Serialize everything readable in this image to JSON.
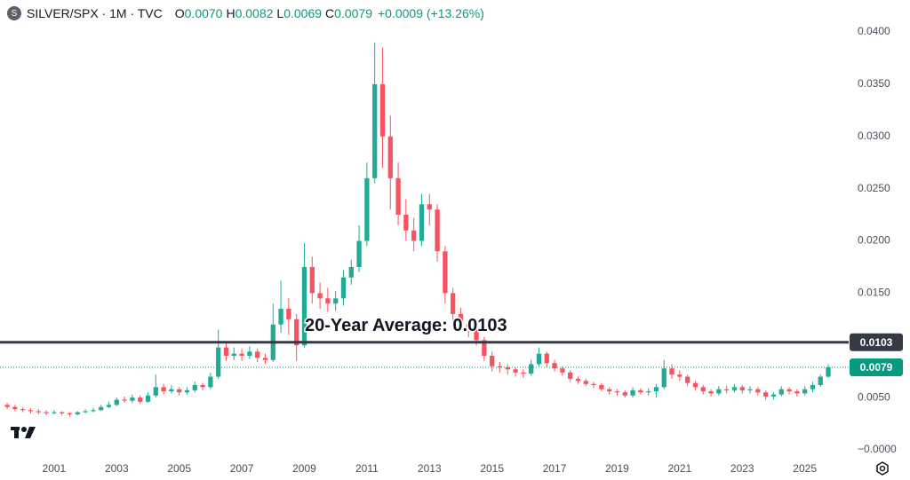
{
  "header": {
    "icon": "S",
    "symbol": "SILVER/SPX · 1M · TVC",
    "ohlc": [
      {
        "label": "O",
        "value": "0.0070"
      },
      {
        "label": "H",
        "value": "0.0082"
      },
      {
        "label": "L",
        "value": "0.0069"
      },
      {
        "label": "C",
        "value": "0.0079"
      }
    ],
    "change": "+0.0009 (+13.26%)"
  },
  "chart_data": {
    "type": "candlestick",
    "up_color": "#22ab94",
    "down_color": "#f7525f",
    "x": [
      1999.5,
      1999.75,
      2000,
      2000.25,
      2000.5,
      2000.75,
      2001,
      2001.25,
      2001.5,
      2001.75,
      2002,
      2002.25,
      2002.5,
      2002.75,
      2003,
      2003.25,
      2003.5,
      2003.75,
      2004,
      2004.25,
      2004.5,
      2004.75,
      2005,
      2005.25,
      2005.5,
      2005.75,
      2006,
      2006.25,
      2006.5,
      2006.75,
      2007,
      2007.25,
      2007.5,
      2007.75,
      2008,
      2008.25,
      2008.5,
      2008.75,
      2009,
      2009.25,
      2009.5,
      2009.75,
      2010,
      2010.25,
      2010.5,
      2010.75,
      2011,
      2011.25,
      2011.5,
      2011.75,
      2012,
      2012.25,
      2012.5,
      2012.75,
      2013,
      2013.25,
      2013.5,
      2013.75,
      2014,
      2014.25,
      2014.5,
      2014.75,
      2015,
      2015.25,
      2015.5,
      2015.75,
      2016,
      2016.25,
      2016.5,
      2016.75,
      2017,
      2017.25,
      2017.5,
      2017.75,
      2018,
      2018.25,
      2018.5,
      2018.75,
      2019,
      2019.25,
      2019.5,
      2019.75,
      2020,
      2020.25,
      2020.5,
      2020.75,
      2021,
      2021.25,
      2021.5,
      2021.75,
      2022,
      2022.25,
      2022.5,
      2022.75,
      2023,
      2023.25,
      2023.5,
      2023.75,
      2024,
      2024.25,
      2024.5,
      2024.75,
      2025,
      2025.25,
      2025.5,
      2025.75
    ],
    "open": [
      0.0043,
      0.0041,
      0.0039,
      0.0038,
      0.0037,
      0.0036,
      0.0035,
      0.0036,
      0.0035,
      0.0034,
      0.0036,
      0.0037,
      0.0038,
      0.0041,
      0.0043,
      0.0048,
      0.0047,
      0.005,
      0.0046,
      0.0052,
      0.006,
      0.0056,
      0.0058,
      0.0055,
      0.0057,
      0.0062,
      0.006,
      0.007,
      0.0098,
      0.009,
      0.0092,
      0.009,
      0.0094,
      0.0088,
      0.0086,
      0.012,
      0.0135,
      0.0125,
      0.01,
      0.0175,
      0.015,
      0.0145,
      0.014,
      0.0145,
      0.0165,
      0.0175,
      0.02,
      0.026,
      0.035,
      0.03,
      0.026,
      0.0225,
      0.021,
      0.02,
      0.0235,
      0.023,
      0.019,
      0.015,
      0.013,
      0.012,
      0.0115,
      0.0105,
      0.009,
      0.008,
      0.0079,
      0.0077,
      0.0074,
      0.0073,
      0.0082,
      0.0092,
      0.0083,
      0.0078,
      0.0074,
      0.0068,
      0.0066,
      0.0063,
      0.0062,
      0.0058,
      0.0056,
      0.0055,
      0.0052,
      0.0057,
      0.0055,
      0.0056,
      0.006,
      0.0078,
      0.0072,
      0.007,
      0.0064,
      0.006,
      0.0056,
      0.0054,
      0.0058,
      0.0057,
      0.006,
      0.0057,
      0.0058,
      0.0055,
      0.0051,
      0.0053,
      0.0058,
      0.0056,
      0.0054,
      0.0058,
      0.0062,
      0.007
    ],
    "high": [
      0.0045,
      0.0043,
      0.0041,
      0.004,
      0.0039,
      0.0038,
      0.0038,
      0.0037,
      0.0036,
      0.0037,
      0.0039,
      0.004,
      0.0043,
      0.0046,
      0.005,
      0.0051,
      0.0053,
      0.0052,
      0.0055,
      0.0072,
      0.0063,
      0.0062,
      0.006,
      0.006,
      0.0065,
      0.0064,
      0.0074,
      0.0115,
      0.0102,
      0.0098,
      0.0097,
      0.0099,
      0.0097,
      0.0092,
      0.014,
      0.0162,
      0.0145,
      0.013,
      0.0198,
      0.0185,
      0.016,
      0.0155,
      0.0152,
      0.0172,
      0.0182,
      0.0215,
      0.0275,
      0.039,
      0.0385,
      0.032,
      0.0275,
      0.024,
      0.0222,
      0.0245,
      0.0245,
      0.0235,
      0.0195,
      0.0155,
      0.0136,
      0.0125,
      0.012,
      0.0108,
      0.0094,
      0.0084,
      0.0082,
      0.0079,
      0.0077,
      0.0086,
      0.0098,
      0.0094,
      0.0086,
      0.008,
      0.0076,
      0.007,
      0.0068,
      0.0065,
      0.0064,
      0.006,
      0.0058,
      0.0057,
      0.006,
      0.0059,
      0.0059,
      0.0063,
      0.0086,
      0.0082,
      0.0076,
      0.0072,
      0.0066,
      0.0062,
      0.0058,
      0.0061,
      0.0061,
      0.0063,
      0.0062,
      0.0061,
      0.006,
      0.0057,
      0.0055,
      0.0061,
      0.006,
      0.0058,
      0.0061,
      0.0065,
      0.0072,
      0.0082
    ],
    "low": [
      0.0039,
      0.0037,
      0.0036,
      0.0035,
      0.0034,
      0.0033,
      0.0034,
      0.0033,
      0.0032,
      0.0033,
      0.0035,
      0.0036,
      0.0037,
      0.004,
      0.0042,
      0.0045,
      0.0045,
      0.0044,
      0.0045,
      0.005,
      0.0053,
      0.0054,
      0.0052,
      0.0053,
      0.0055,
      0.0057,
      0.0058,
      0.0068,
      0.0085,
      0.0086,
      0.0085,
      0.0087,
      0.0084,
      0.0082,
      0.0084,
      0.0112,
      0.011,
      0.0085,
      0.0098,
      0.014,
      0.0135,
      0.0132,
      0.0133,
      0.0138,
      0.0158,
      0.017,
      0.0195,
      0.0255,
      0.027,
      0.023,
      0.0215,
      0.02,
      0.019,
      0.0195,
      0.0215,
      0.018,
      0.014,
      0.0122,
      0.0115,
      0.0108,
      0.01,
      0.0085,
      0.0075,
      0.0074,
      0.0072,
      0.007,
      0.0069,
      0.0071,
      0.008,
      0.0079,
      0.0075,
      0.0071,
      0.0065,
      0.0063,
      0.0061,
      0.0059,
      0.0056,
      0.0053,
      0.0052,
      0.005,
      0.005,
      0.0053,
      0.0052,
      0.005,
      0.0058,
      0.0068,
      0.0066,
      0.0061,
      0.0057,
      0.0053,
      0.0051,
      0.0052,
      0.0054,
      0.0055,
      0.0054,
      0.0054,
      0.0052,
      0.0048,
      0.0048,
      0.0051,
      0.0053,
      0.0051,
      0.0052,
      0.0055,
      0.006,
      0.0069
    ],
    "close": [
      0.0041,
      0.0039,
      0.0038,
      0.0037,
      0.0036,
      0.0035,
      0.0036,
      0.0035,
      0.0034,
      0.0036,
      0.0037,
      0.0038,
      0.0041,
      0.0043,
      0.0048,
      0.0047,
      0.005,
      0.0046,
      0.0052,
      0.006,
      0.0056,
      0.0058,
      0.0055,
      0.0057,
      0.0062,
      0.006,
      0.007,
      0.0098,
      0.009,
      0.0092,
      0.009,
      0.0094,
      0.0088,
      0.0086,
      0.012,
      0.0135,
      0.0125,
      0.01,
      0.0175,
      0.015,
      0.0145,
      0.014,
      0.0145,
      0.0165,
      0.0175,
      0.02,
      0.026,
      0.035,
      0.03,
      0.026,
      0.0225,
      0.021,
      0.02,
      0.0235,
      0.023,
      0.019,
      0.015,
      0.013,
      0.012,
      0.0115,
      0.0105,
      0.009,
      0.008,
      0.0079,
      0.0077,
      0.0074,
      0.0073,
      0.0082,
      0.0092,
      0.0083,
      0.0078,
      0.0074,
      0.0068,
      0.0066,
      0.0063,
      0.0062,
      0.0058,
      0.0056,
      0.0055,
      0.0052,
      0.0057,
      0.0055,
      0.0056,
      0.006,
      0.0078,
      0.0072,
      0.007,
      0.0064,
      0.006,
      0.0056,
      0.0054,
      0.0058,
      0.0057,
      0.006,
      0.0057,
      0.0058,
      0.0055,
      0.0051,
      0.0053,
      0.0058,
      0.0056,
      0.0054,
      0.0058,
      0.0062,
      0.007,
      0.0079
    ],
    "xlim": [
      1999.27,
      2026.26
    ],
    "xticks": [
      2001,
      2003,
      2005,
      2007,
      2009,
      2011,
      2013,
      2015,
      2017,
      2019,
      2021,
      2023,
      2025
    ],
    "ylim": [
      -0.00085,
      0.04068
    ],
    "yticks": [
      {
        "value": 0,
        "label": "−0.0000"
      },
      {
        "value": 0.005,
        "label": "0.0050"
      },
      {
        "value": 0.015,
        "label": "0.0150"
      },
      {
        "value": 0.02,
        "label": "0.0200"
      },
      {
        "value": 0.025,
        "label": "0.0250"
      },
      {
        "value": 0.03,
        "label": "0.0300"
      },
      {
        "value": 0.035,
        "label": "0.0350"
      },
      {
        "value": 0.04,
        "label": "0.0400"
      }
    ],
    "grid": false,
    "reference_line": {
      "value": 0.0103,
      "label": "0.0103",
      "color": "#363a45"
    },
    "annotation": "20-Year Average: 0.0103",
    "last_price": {
      "value": 0.0079,
      "label": "0.0079",
      "color": "#089981"
    }
  }
}
